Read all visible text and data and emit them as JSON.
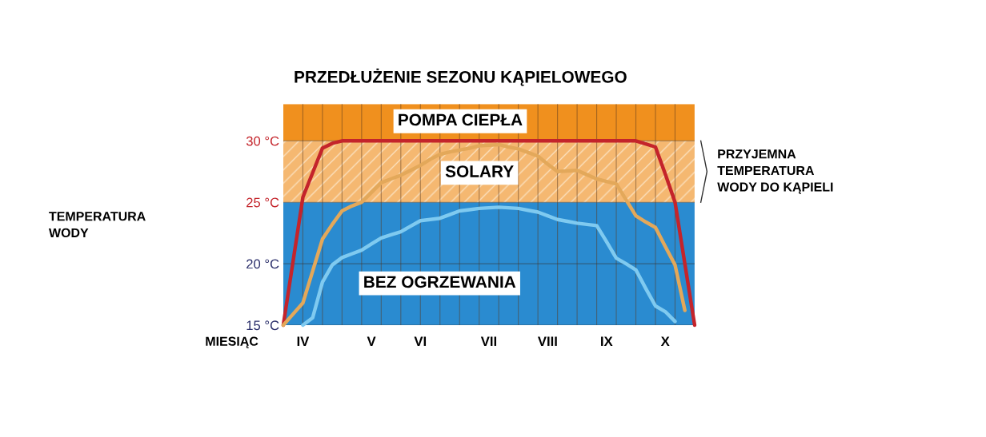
{
  "chart_data": {
    "type": "line",
    "title": "PRZEDŁUŻENIE SEZONU KĄPIELOWEGO",
    "xlabel": "MIESIĄC",
    "annotations": [
      "TEMPERATURA\nWODY"
    ],
    "categories": [
      null,
      null,
      "IV",
      null,
      null,
      null,
      null,
      null,
      null,
      "V",
      null,
      null,
      null,
      null,
      "VI",
      null,
      null,
      null,
      null,
      null,
      null,
      "VII",
      null,
      null,
      null,
      null,
      null,
      "VIII",
      null,
      null,
      null,
      null,
      null,
      "IX",
      null,
      null,
      null,
      null,
      null,
      "X",
      null,
      null,
      null
    ],
    "ylim": [
      15,
      33
    ],
    "yticks": [
      {
        "value": 15,
        "label": "15 °C"
      },
      {
        "value": 20,
        "label": "20 °C"
      },
      {
        "value": 25,
        "label": "25 °C"
      },
      {
        "value": 30,
        "label": "30 °C"
      }
    ],
    "grid": true,
    "legend": false,
    "marker": "none",
    "line_style": "solid",
    "bands": [
      {
        "axis": "y",
        "from": 15,
        "to": 25,
        "color": "#2a8bd0"
      },
      {
        "axis": "y",
        "from": 25,
        "to": 30,
        "color": "#f5b871",
        "label": "PRZYJEMNA\nTEMPERATURA\nWODY DO KĄPIELI"
      },
      {
        "axis": "y",
        "from": 30,
        "to": 33,
        "color": "#f0901e"
      }
    ],
    "series": [
      {
        "name": "POMPA CIEPŁA",
        "color": "#c4242b",
        "values": [
          15,
          20.2,
          25.4,
          27.4,
          29.4,
          29.8,
          30,
          30,
          30,
          30,
          30,
          30,
          30,
          30,
          30,
          30,
          30,
          30,
          30,
          30,
          30,
          30,
          30,
          30,
          30,
          30,
          30,
          30,
          30,
          30,
          30,
          30,
          30,
          30,
          30,
          30,
          30,
          29.75,
          29.5,
          27.3,
          25,
          20,
          15
        ]
      },
      {
        "name": "SOLARY",
        "color": "#e3a85a",
        "values": [
          15,
          15.9,
          16.8,
          19.4,
          22.0,
          23.2,
          24.3,
          24.7,
          25.0,
          25.8,
          26.6,
          26.9,
          27.2,
          27.6,
          28.0,
          28.5,
          28.9,
          29.1,
          29.25,
          29.4,
          29.6,
          29.65,
          29.7,
          29.5,
          29.35,
          29.05,
          28.75,
          28.1,
          27.5,
          27.55,
          27.6,
          27.25,
          26.9,
          26.7,
          26.5,
          25.2,
          23.9,
          23.4,
          22.95,
          21.4,
          19.9,
          16.2,
          null
        ]
      },
      {
        "name": "BEZ OGRZEWANIA",
        "color": "#7fcaf0",
        "values": [
          null,
          null,
          15,
          15.6,
          18.5,
          19.9,
          20.5,
          20.8,
          21.1,
          21.6,
          22.1,
          22.35,
          22.6,
          23.05,
          23.5,
          23.6,
          23.7,
          24.0,
          24.3,
          24.4,
          24.5,
          24.55,
          24.6,
          24.55,
          24.5,
          24.35,
          24.2,
          23.9,
          23.6,
          23.45,
          23.3,
          23.2,
          23.1,
          21.8,
          20.45,
          20.0,
          19.5,
          18.0,
          16.56,
          16.1,
          15.3,
          null,
          null
        ]
      }
    ]
  }
}
